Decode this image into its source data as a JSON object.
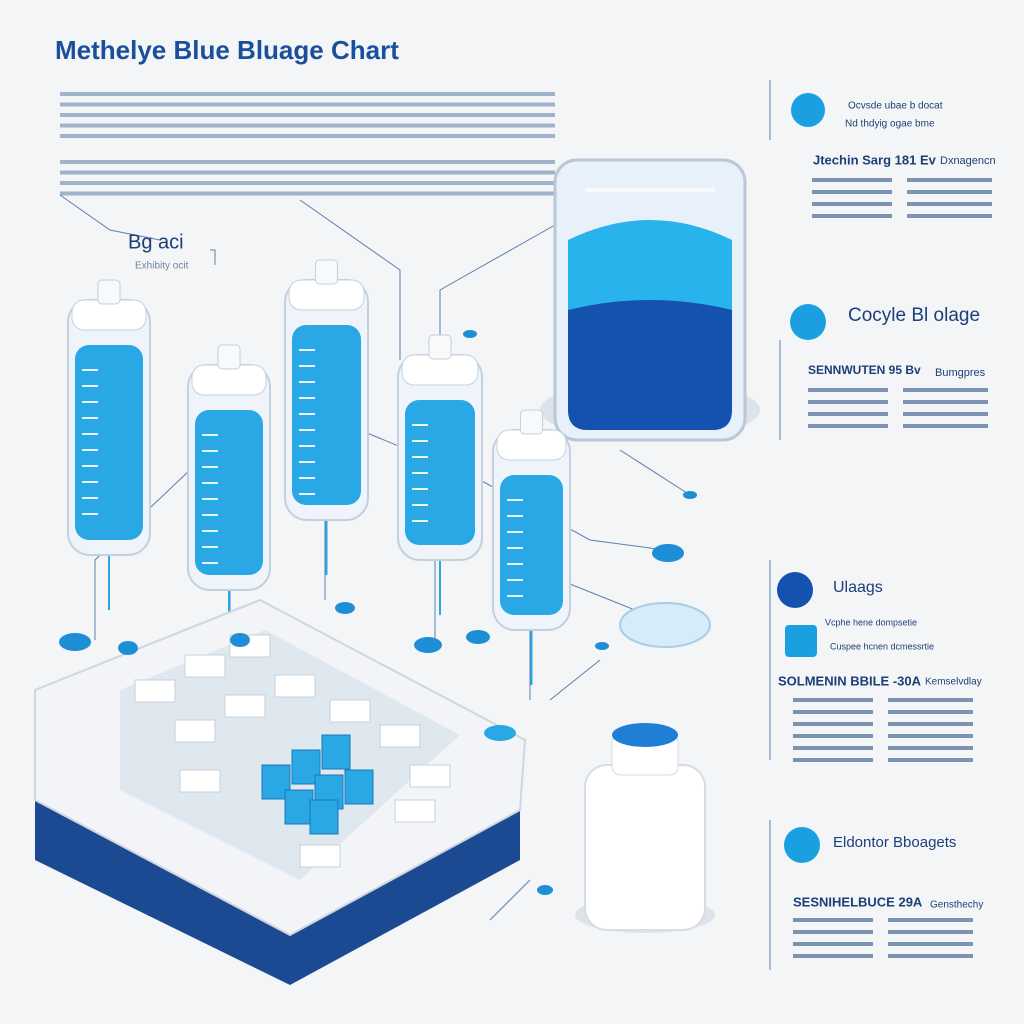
{
  "header": {
    "title": "Methelye Blue Bluage Chart"
  },
  "left_label": {
    "title": "Bg aci",
    "subtitle": "Exhibity ocit"
  },
  "panels": [
    {
      "lines": [
        "Ocvsde ubae b docat",
        "Nd thdyig ogae bme"
      ]
    },
    {
      "heading": "Jtechin Sarg 181 Ev",
      "side": "Dxnagencn"
    },
    {
      "heading": "Cocyle Bl olage"
    },
    {
      "heading": "SENNWUTEN 95 Bv",
      "side": "Bumgpres"
    },
    {
      "heading": "Ulaags"
    },
    {
      "lines": [
        "Vcphe hene dompsetie",
        "Cuspee hcnen dcmessrtie"
      ]
    },
    {
      "heading": "SOLMENIN BBILE -30A",
      "side": "Kemselvdlay"
    },
    {
      "heading": "Eldontor Bboagets"
    },
    {
      "heading": "SESNIHELBUCE 29A",
      "side": "Gensthechy"
    }
  ]
}
